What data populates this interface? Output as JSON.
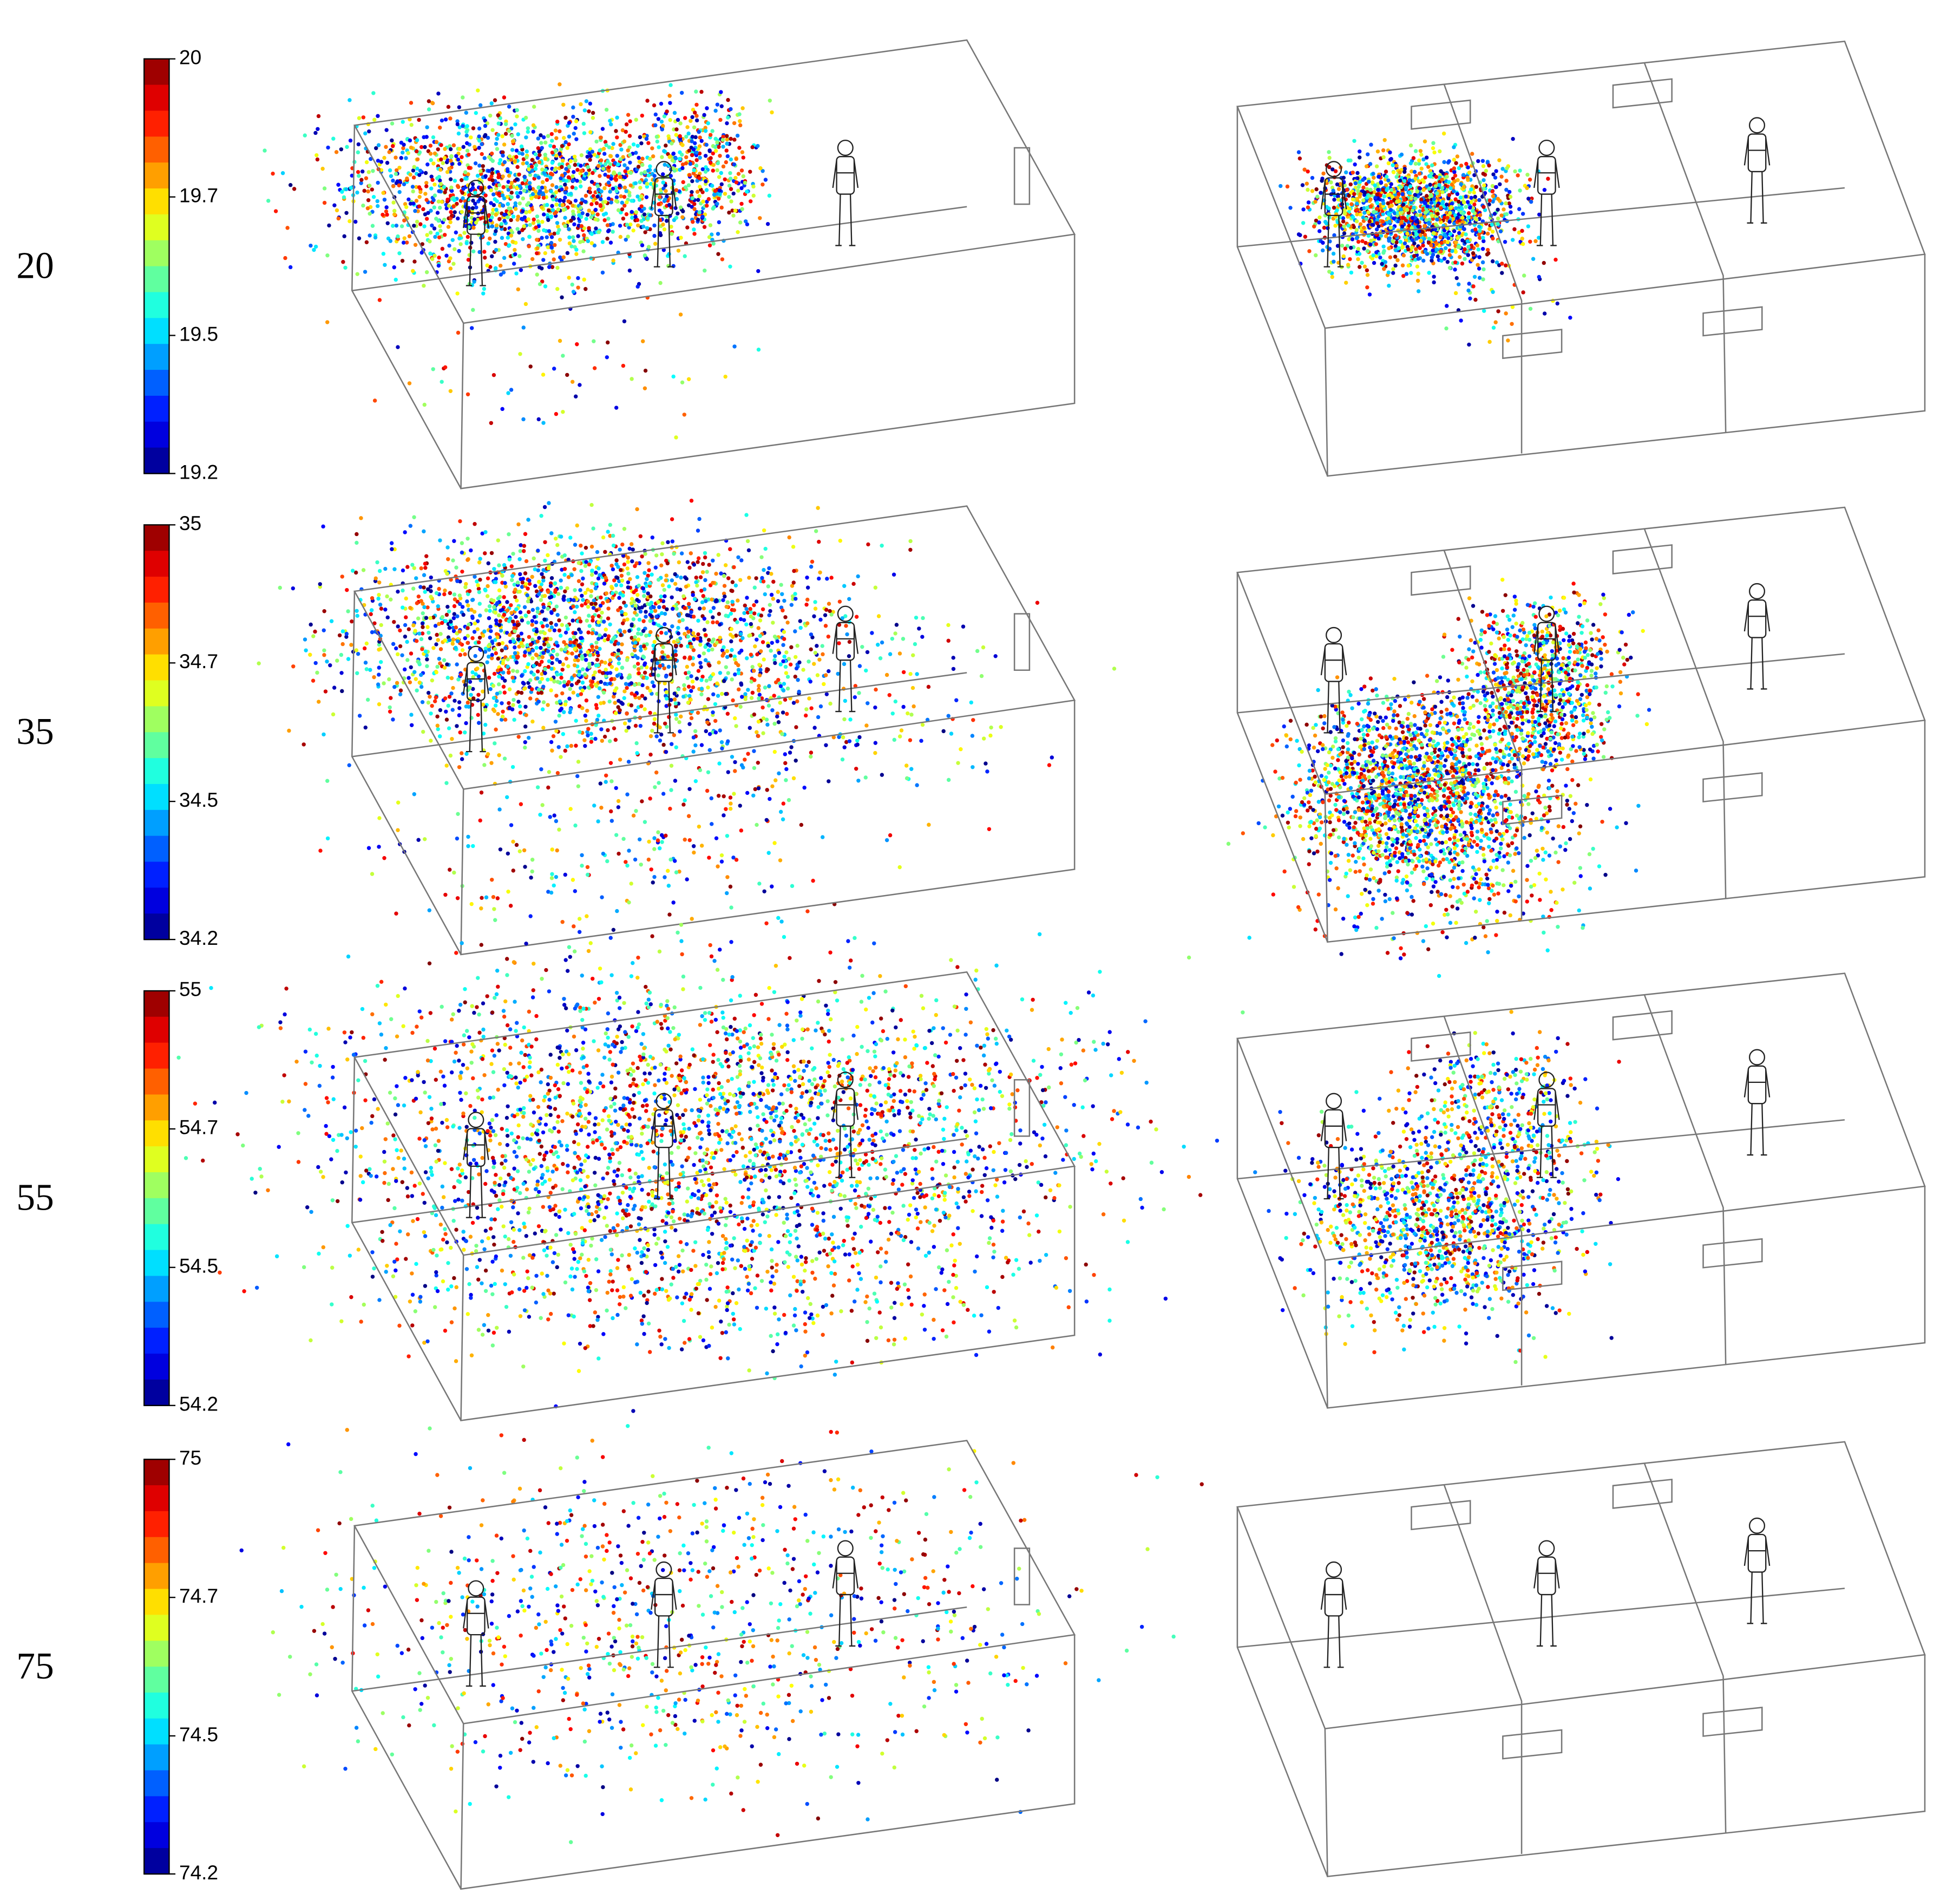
{
  "rows": [
    {
      "label": "20",
      "colorbar_ticks": [
        "20",
        "19.7",
        "19.5",
        "19.2"
      ]
    },
    {
      "label": "35",
      "colorbar_ticks": [
        "35",
        "34.7",
        "34.5",
        "34.2"
      ]
    },
    {
      "label": "55",
      "colorbar_ticks": [
        "55",
        "54.7",
        "54.5",
        "54.2"
      ]
    },
    {
      "label": "75",
      "colorbar_ticks": [
        "75",
        "74.7",
        "74.5",
        "74.2"
      ]
    }
  ]
}
